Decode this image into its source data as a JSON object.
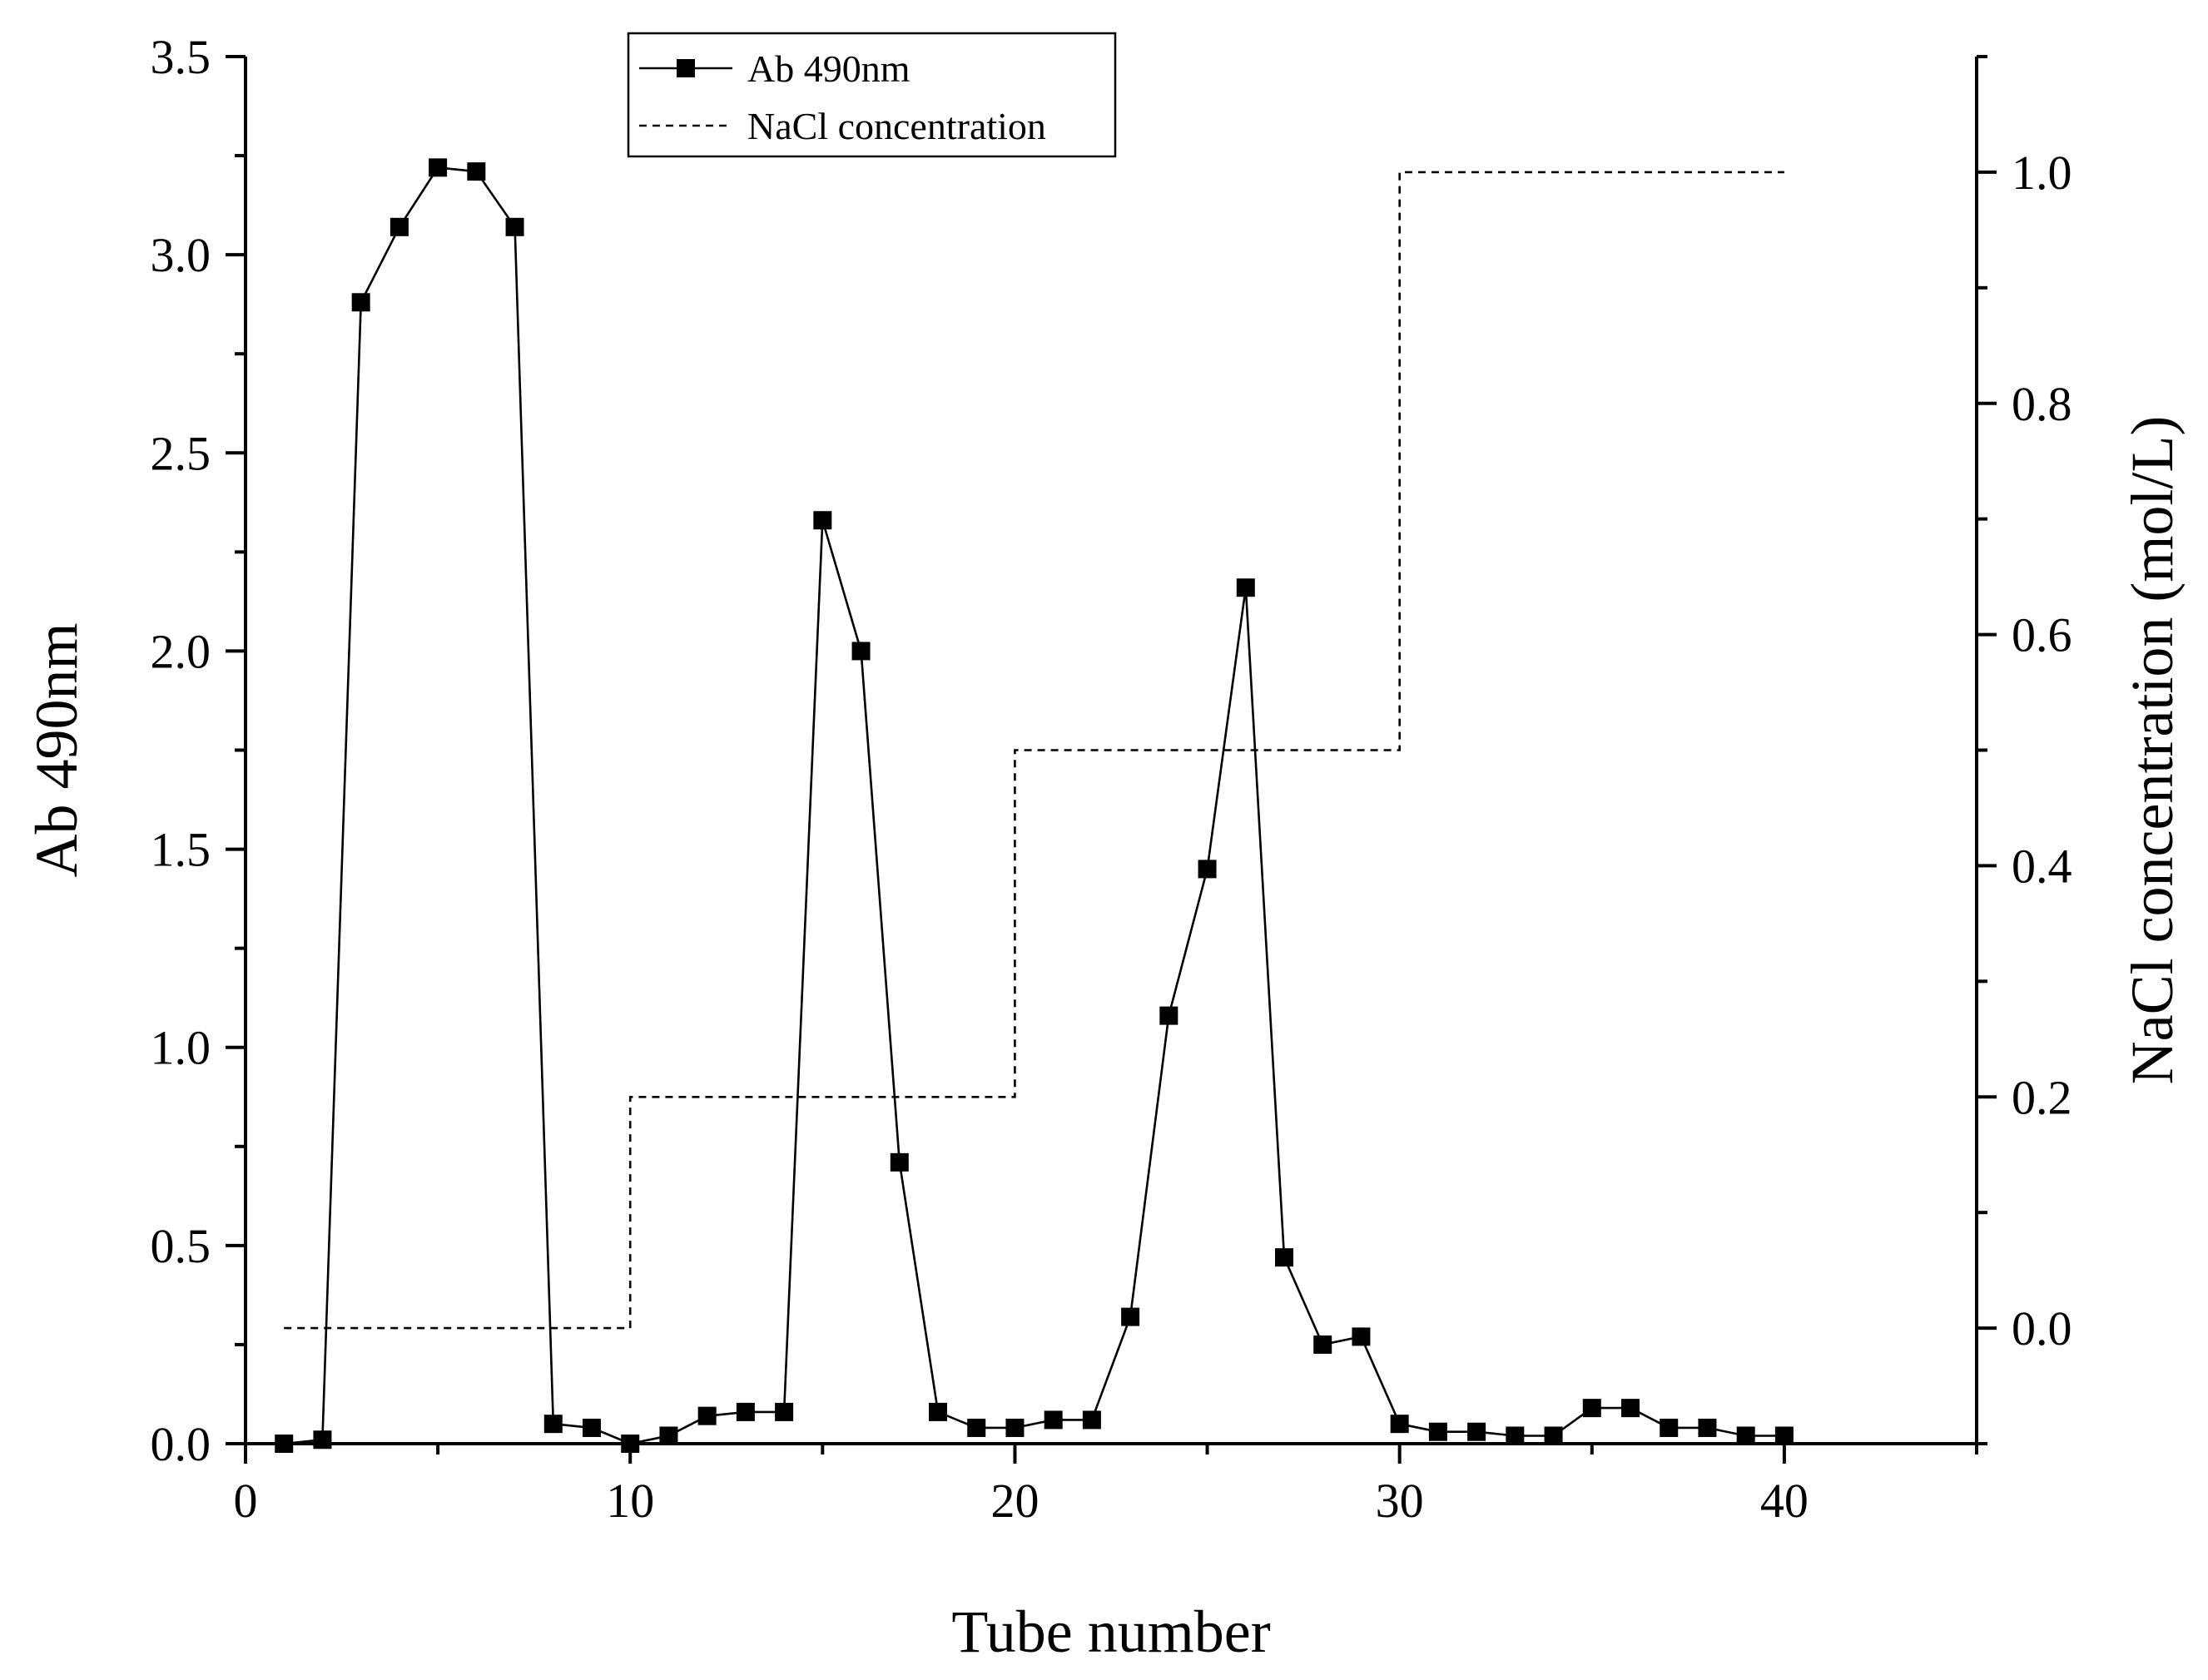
{
  "chart_data": {
    "type": "line",
    "xlabel": "Tube number",
    "ylabel": "Ab 490nm",
    "y2label": "NaCl concentration (mol/L)",
    "xlim": [
      0,
      45
    ],
    "ylim": [
      0,
      3.5
    ],
    "y2lim": [
      -0.1,
      1.1
    ],
    "xticks": [
      0,
      10,
      20,
      30,
      40
    ],
    "yticks": [
      0.0,
      0.5,
      1.0,
      1.5,
      2.0,
      2.5,
      3.0,
      3.5
    ],
    "y2ticks": [
      0.0,
      0.2,
      0.4,
      0.6,
      0.8,
      1.0
    ],
    "xtick_labels": [
      "0",
      "10",
      "20",
      "30",
      "40"
    ],
    "ytick_labels": [
      "0.0",
      "0.5",
      "1.0",
      "1.5",
      "2.0",
      "2.5",
      "3.0",
      "3.5"
    ],
    "y2tick_labels": [
      "0.0",
      "0.2",
      "0.4",
      "0.6",
      "0.8",
      "1.0"
    ],
    "grid": false,
    "legend_position": "top-center",
    "series": [
      {
        "name": "Ab 490nm",
        "style": "solid-line-square-markers",
        "axis": "left",
        "color": "#000000",
        "x": [
          1,
          2,
          3,
          4,
          5,
          6,
          7,
          8,
          9,
          10,
          11,
          12,
          13,
          14,
          15,
          16,
          17,
          18,
          19,
          20,
          21,
          22,
          23,
          24,
          25,
          26,
          27,
          28,
          29,
          30,
          31,
          32,
          33,
          34,
          35,
          36,
          37,
          38,
          39,
          40
        ],
        "y": [
          0.0,
          0.01,
          2.88,
          3.07,
          3.22,
          3.21,
          3.07,
          0.05,
          0.04,
          0.0,
          0.02,
          0.07,
          0.08,
          0.08,
          2.33,
          2.0,
          0.71,
          0.08,
          0.04,
          0.04,
          0.06,
          0.06,
          0.32,
          1.08,
          1.45,
          2.16,
          0.47,
          0.25,
          0.27,
          0.05,
          0.03,
          0.03,
          0.02,
          0.02,
          0.09,
          0.09,
          0.04,
          0.04,
          0.02,
          0.02
        ]
      },
      {
        "name": "NaCl concentration",
        "style": "dashed-step",
        "axis": "right",
        "color": "#000000",
        "x": [
          1,
          10,
          10,
          20,
          20,
          30,
          30,
          40
        ],
        "y": [
          0.0,
          0.0,
          0.2,
          0.2,
          0.5,
          0.5,
          1.0,
          1.0
        ]
      }
    ]
  }
}
